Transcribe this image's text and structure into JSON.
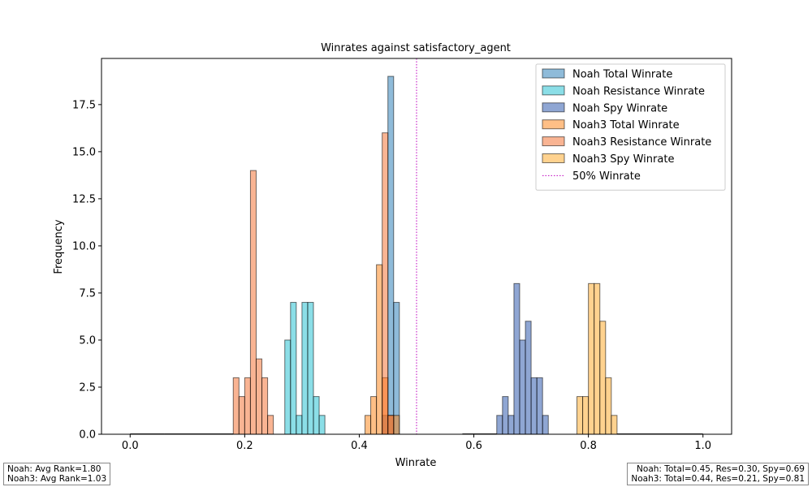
{
  "chart_data": {
    "type": "bar",
    "title": "Winrates against satisfactory_agent",
    "xlabel": "Winrate",
    "ylabel": "Frequency",
    "xlim": [
      -0.05,
      1.05
    ],
    "ylim": [
      0,
      19.95
    ],
    "xticks": [
      "0.0",
      "0.2",
      "0.4",
      "0.6",
      "0.8",
      "1.0"
    ],
    "yticks": [
      "0.0",
      "2.5",
      "5.0",
      "7.5",
      "10.0",
      "12.5",
      "15.0",
      "17.5"
    ],
    "bin_width": 0.01,
    "grid": false,
    "legend_position": "top-right",
    "vline": {
      "x": 0.5,
      "label": "50% Winrate",
      "color": "#bf00bf",
      "style": "dotted"
    },
    "series": [
      {
        "name": "Noah Total Winrate",
        "color": "#1f77b4",
        "bars": [
          [
            0.0,
            0.0
          ],
          [
            0.43,
            0
          ],
          [
            0.44,
            1
          ],
          [
            0.45,
            19
          ],
          [
            0.46,
            7
          ],
          [
            0.47,
            0
          ]
        ]
      },
      {
        "name": "Noah Resistance Winrate",
        "color": "#17becf",
        "bars": [
          [
            0.27,
            5
          ],
          [
            0.28,
            7
          ],
          [
            0.29,
            1
          ],
          [
            0.3,
            7
          ],
          [
            0.31,
            7
          ],
          [
            0.32,
            2
          ],
          [
            0.33,
            1
          ]
        ]
      },
      {
        "name": "Noah Spy Winrate",
        "color": "#1f4ea8",
        "bars": [
          [
            0.64,
            1
          ],
          [
            0.65,
            2
          ],
          [
            0.66,
            1
          ],
          [
            0.67,
            8
          ],
          [
            0.68,
            5
          ],
          [
            0.69,
            6
          ],
          [
            0.7,
            3
          ],
          [
            0.71,
            3
          ],
          [
            0.72,
            1
          ]
        ]
      },
      {
        "name": "Noah3 Total Winrate",
        "color": "#ff7f0e",
        "bars": [
          [
            0.41,
            1
          ],
          [
            0.42,
            2
          ],
          [
            0.43,
            9
          ],
          [
            0.44,
            3
          ],
          [
            0.45,
            1
          ],
          [
            0.46,
            1
          ]
        ]
      },
      {
        "name": "Noah3 Resistance Winrate",
        "color": "#f46a27",
        "bars": [
          [
            0.18,
            3
          ],
          [
            0.19,
            2
          ],
          [
            0.2,
            3
          ],
          [
            0.21,
            14
          ],
          [
            0.22,
            4
          ],
          [
            0.23,
            3
          ],
          [
            0.24,
            1
          ],
          [
            0.44,
            16
          ],
          [
            0.45,
            1
          ]
        ]
      },
      {
        "name": "Noah3 Spy Winrate",
        "color": "#ffa51f",
        "bars": [
          [
            0.78,
            2
          ],
          [
            0.79,
            2
          ],
          [
            0.8,
            8
          ],
          [
            0.81,
            8
          ],
          [
            0.82,
            6
          ],
          [
            0.83,
            3
          ],
          [
            0.84,
            1
          ]
        ]
      }
    ],
    "flat_lines": [
      {
        "from": 0.0,
        "to": 0.06
      },
      {
        "from": 0.06,
        "to": 0.18
      },
      {
        "from": 0.58,
        "to": 0.64
      },
      {
        "from": 0.85,
        "to": 1.0
      }
    ]
  },
  "notes": {
    "left_line1": "Noah: Avg Rank=1.80",
    "left_line2": "Noah3: Avg Rank=1.03",
    "right_line1": "Noah: Total=0.45, Res=0.30, Spy=0.69",
    "right_line2": "Noah3: Total=0.44, Res=0.21, Spy=0.81"
  }
}
